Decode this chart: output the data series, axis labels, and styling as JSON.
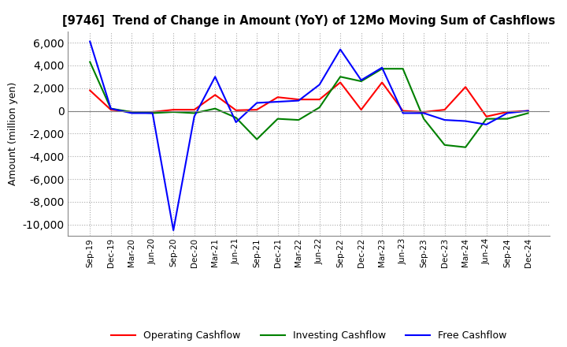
{
  "title": "[9746]  Trend of Change in Amount (YoY) of 12Mo Moving Sum of Cashflows",
  "ylabel": "Amount (million yen)",
  "ylim": [
    -11000,
    7000
  ],
  "yticks": [
    -10000,
    -8000,
    -6000,
    -4000,
    -2000,
    0,
    2000,
    4000,
    6000
  ],
  "x_labels": [
    "Sep-19",
    "Dec-19",
    "Mar-20",
    "Jun-20",
    "Sep-20",
    "Dec-20",
    "Mar-21",
    "Jun-21",
    "Sep-21",
    "Dec-21",
    "Mar-22",
    "Jun-22",
    "Sep-22",
    "Dec-22",
    "Mar-23",
    "Jun-23",
    "Sep-23",
    "Dec-23",
    "Mar-24",
    "Jun-24",
    "Sep-24",
    "Dec-24"
  ],
  "operating": [
    1800,
    100,
    -100,
    -100,
    100,
    100,
    1400,
    50,
    100,
    1200,
    1000,
    1000,
    2500,
    100,
    2500,
    0,
    -100,
    100,
    2100,
    -500,
    -100,
    0
  ],
  "investing": [
    4300,
    200,
    -100,
    -200,
    -100,
    -200,
    200,
    -600,
    -2500,
    -700,
    -800,
    300,
    3000,
    2600,
    3700,
    3700,
    -700,
    -3000,
    -3200,
    -700,
    -700,
    -200
  ],
  "free": [
    6100,
    200,
    -200,
    -200,
    -10500,
    -500,
    3000,
    -1000,
    700,
    800,
    900,
    2300,
    5400,
    2700,
    3800,
    -200,
    -200,
    -800,
    -900,
    -1200,
    -200,
    0
  ],
  "operating_color": "#ff0000",
  "investing_color": "#008000",
  "free_color": "#0000ff",
  "background_color": "#ffffff",
  "grid_color": "#aaaaaa"
}
